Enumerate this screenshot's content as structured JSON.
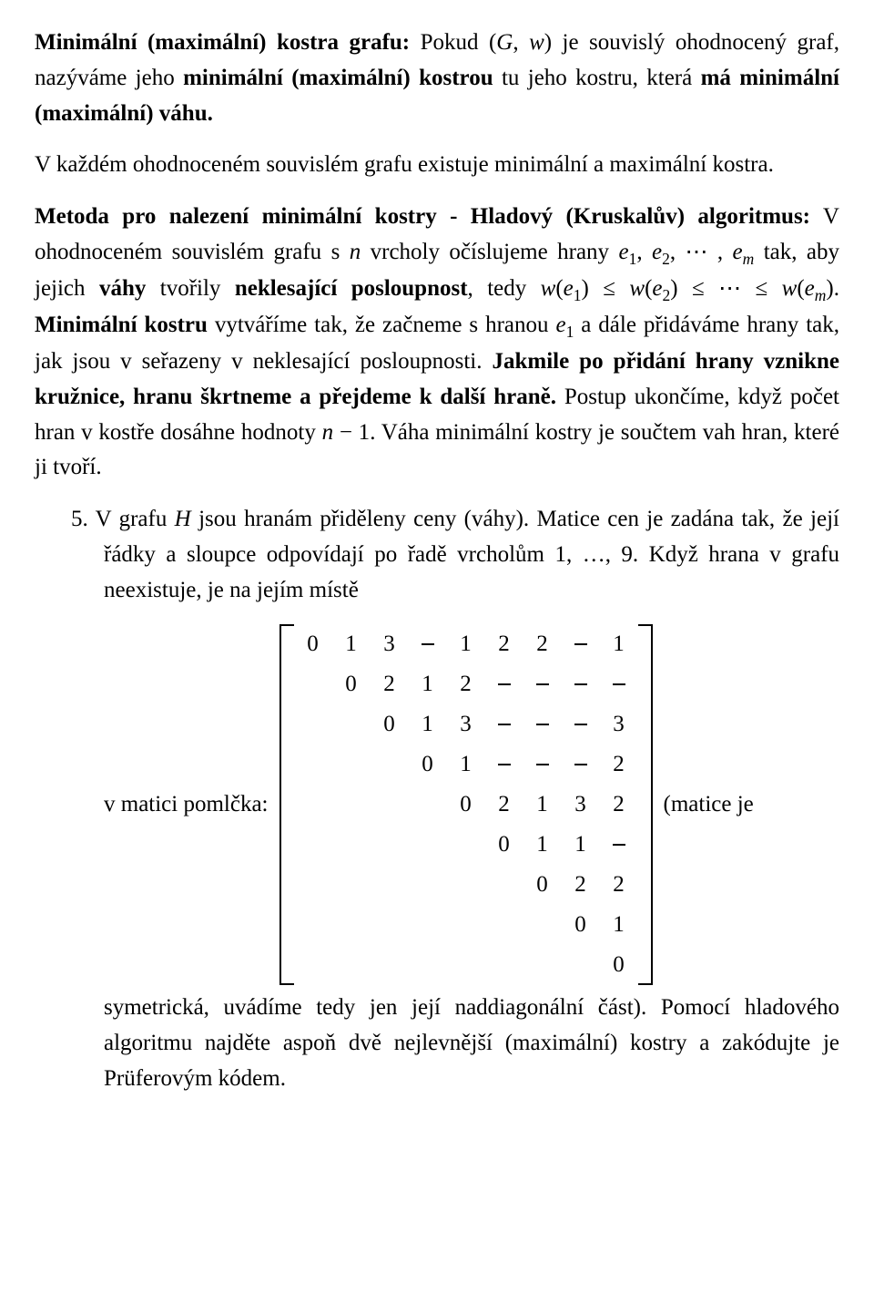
{
  "para1": {
    "t1": "Minimální (maximální) kostra grafu:",
    "t2": " Pokud ",
    "t3": "(",
    "t4": "G",
    "t5": ", ",
    "t6": "w",
    "t7": ")",
    "t8": " je souvislý ohodnocený graf, nazýváme jeho ",
    "t9": "minimální (maximální) kostrou",
    "t10": " tu jeho kostru, která ",
    "t11": "má minimální (maximální) váhu."
  },
  "para2": {
    "t1": "V každém ohodnoceném souvislém grafu existuje minimální a maximální kostra."
  },
  "para3": {
    "t1": "Metoda pro nalezení minimální kostry - Hladový (Kruskalův) algoritmus:",
    "t2": " V ohodnoceném souvislém grafu s ",
    "t3": "n",
    "t4": " vrcholy očíslujeme hrany ",
    "t5": "e",
    "e1s": "1",
    "t6": ", ",
    "e2s": "2",
    "t7": ", ⋯ , ",
    "ems": "m",
    "t8": " tak, aby jejich ",
    "t9": "váhy",
    "t10": " tvořily ",
    "t11": "neklesající posloupnost",
    "t12": ", tedy ",
    "w": "w",
    "lp": "(",
    "rp": ")",
    "le": " ≤ ",
    "cdots": " ≤ ⋯ ≤ ",
    "t13": ". ",
    "t14": "Minimální kostru",
    "t15": " vytváříme tak, že začneme s hranou ",
    "t16": " a dále přidáváme hrany tak, jak jsou v seřazeny v neklesající posloupnosti. ",
    "t17": "Jakmile po přidání hrany vznikne kružnice, hranu škrtneme a přejdeme k další hraně.",
    "t18": " Postup ukončíme, když počet hran v kostře dosáhne hodnoty ",
    "t19": "n",
    "t20": " − 1",
    "t21": ". Váha minimální kostry je součtem vah hran, které ji tvoří."
  },
  "item5": {
    "num": "5.",
    "t1": " V grafu ",
    "t2": "H",
    "t3": " jsou hranám přiděleny ceny (váhy). Matice cen je zadána tak, že její řádky a sloupce odpovídají po řadě vrcholům 1, …, 9. Když hrana v grafu neexistuje, je na jejím místě",
    "left": "v matici pomlčka:",
    "right": "(matice je",
    "t4": "symetrická, uvádíme tedy jen její naddiagonální část). Pomocí hladového algoritmu najděte aspoň dvě nejlevnější (maximální) kostry a zakódujte je Prüferovým kódem."
  },
  "matrix": {
    "rows": [
      [
        "0",
        "1",
        "3",
        "–",
        "1",
        "2",
        "2",
        "–",
        "1"
      ],
      [
        "",
        "0",
        "2",
        "1",
        "2",
        "–",
        "–",
        "–",
        "–"
      ],
      [
        "",
        "",
        "0",
        "1",
        "3",
        "–",
        "–",
        "–",
        "3"
      ],
      [
        "",
        "",
        "",
        "0",
        "1",
        "–",
        "–",
        "–",
        "2"
      ],
      [
        "",
        "",
        "",
        "",
        "0",
        "2",
        "1",
        "3",
        "2"
      ],
      [
        "",
        "",
        "",
        "",
        "",
        "0",
        "1",
        "1",
        "–"
      ],
      [
        "",
        "",
        "",
        "",
        "",
        "",
        "0",
        "2",
        "2"
      ],
      [
        "",
        "",
        "",
        "",
        "",
        "",
        "",
        "0",
        "1"
      ],
      [
        "",
        "",
        "",
        "",
        "",
        "",
        "",
        "",
        "0"
      ]
    ]
  }
}
